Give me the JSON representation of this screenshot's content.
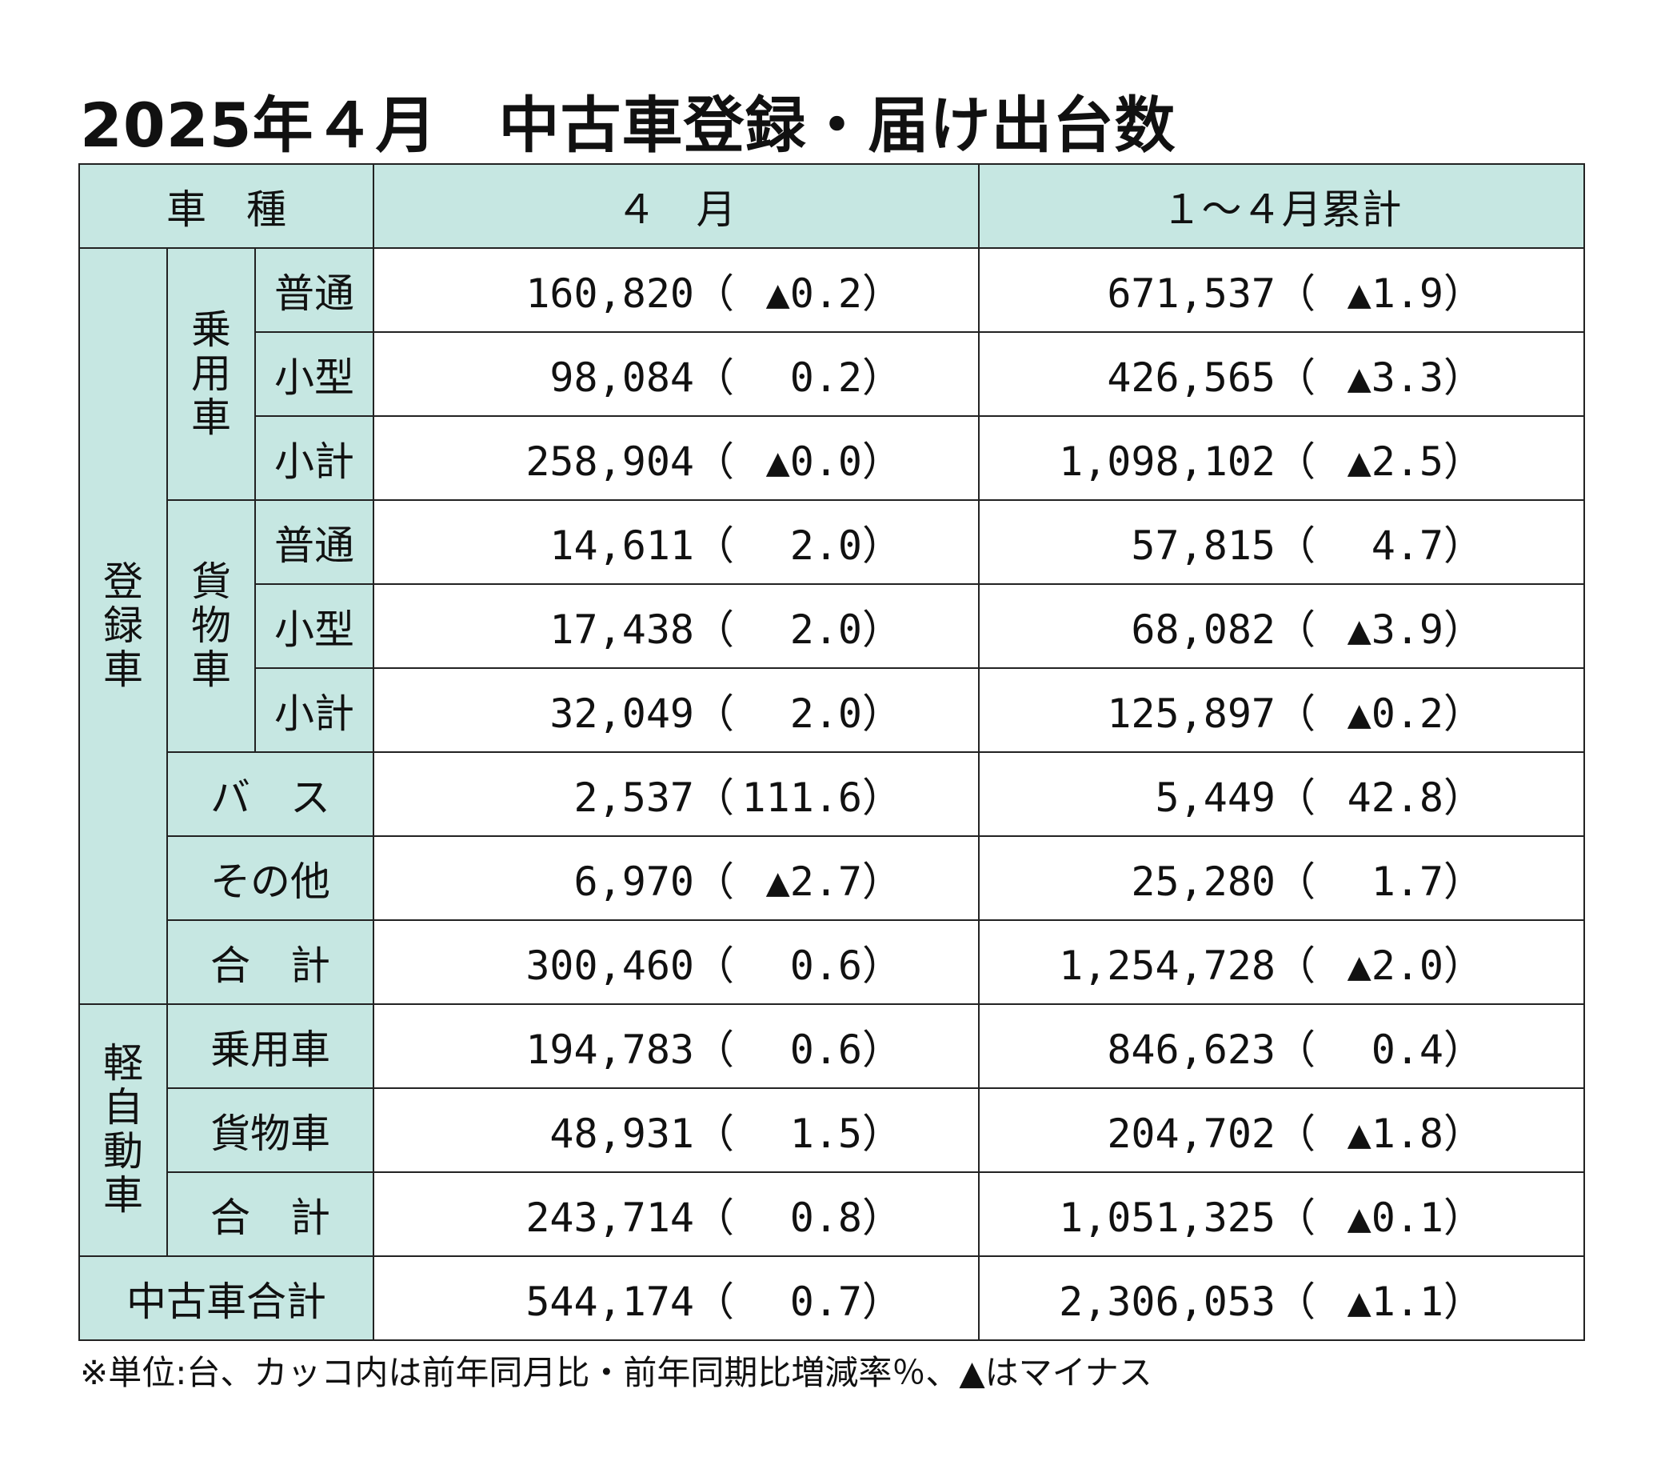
{
  "title": "2025年４月　中古車登録・届け出台数",
  "headers": {
    "type": "車　種",
    "month": "４　月",
    "cumulative": "１～４月累計"
  },
  "groups": {
    "registered": "登録車",
    "passenger": "乗用車",
    "cargo": "貨物車",
    "kei": "軽自動車"
  },
  "rows": [
    {
      "label": "普通",
      "m": "160,820",
      "mp": "▲0.2",
      "c": "671,537",
      "cp": "▲1.9"
    },
    {
      "label": "小型",
      "m": "98,084",
      "mp": "0.2",
      "c": "426,565",
      "cp": "▲3.3"
    },
    {
      "label": "小計",
      "m": "258,904",
      "mp": "▲0.0",
      "c": "1,098,102",
      "cp": "▲2.5"
    },
    {
      "label": "普通",
      "m": "14,611",
      "mp": "2.0",
      "c": "57,815",
      "cp": "4.7"
    },
    {
      "label": "小型",
      "m": "17,438",
      "mp": "2.0",
      "c": "68,082",
      "cp": "▲3.9"
    },
    {
      "label": "小計",
      "m": "32,049",
      "mp": "2.0",
      "c": "125,897",
      "cp": "▲0.2"
    },
    {
      "label": "バ　ス",
      "m": "2,537",
      "mp": "111.6",
      "c": "5,449",
      "cp": "42.8"
    },
    {
      "label": "その他",
      "m": "6,970",
      "mp": "▲2.7",
      "c": "25,280",
      "cp": "1.7"
    },
    {
      "label": "合　計",
      "m": "300,460",
      "mp": "0.6",
      "c": "1,254,728",
      "cp": "▲2.0"
    },
    {
      "label": "乗用車",
      "m": "194,783",
      "mp": "0.6",
      "c": "846,623",
      "cp": "0.4"
    },
    {
      "label": "貨物車",
      "m": "48,931",
      "mp": "1.5",
      "c": "204,702",
      "cp": "▲1.8"
    },
    {
      "label": "合　計",
      "m": "243,714",
      "mp": "0.8",
      "c": "1,051,325",
      "cp": "▲0.1"
    },
    {
      "label": "中古車合計",
      "m": "544,174",
      "mp": "0.7",
      "c": "2,306,053",
      "cp": "▲1.1"
    }
  ],
  "note": "※単位:台、カッコ内は前年同月比・前年同期比増減率％、▲はマイナス",
  "colors": {
    "header_bg": "#c6e7e2",
    "border": "#222222"
  }
}
